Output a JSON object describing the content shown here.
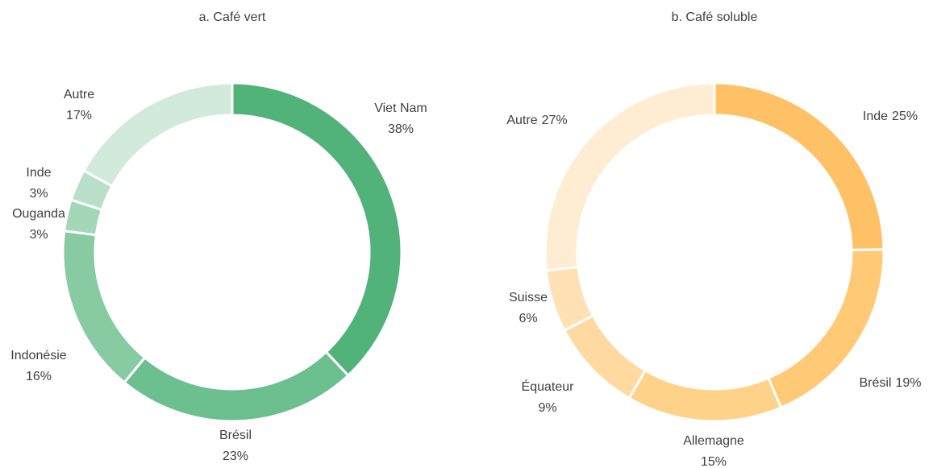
{
  "chart_data": [
    {
      "type": "donut",
      "title": "a. Café vert",
      "categories": [
        "Viet Nam",
        "Brésil",
        "Indonésie",
        "Ouganda",
        "Inde",
        "Autre"
      ],
      "values": [
        38,
        23,
        16,
        3,
        3,
        17
      ],
      "value_labels": [
        "38%",
        "23%",
        "16%",
        "3%",
        "3%",
        "17%"
      ],
      "colors": [
        "#52b37a",
        "#6cbf8e",
        "#88cba3",
        "#a3d7b8",
        "#badfc9",
        "#d2eadb"
      ]
    },
    {
      "type": "donut",
      "title": "b. Café soluble",
      "categories": [
        "Inde",
        "Brésil",
        "Allemagne",
        "Équateur",
        "Suisse",
        "Autre"
      ],
      "values": [
        25,
        19,
        15,
        9,
        6,
        27
      ],
      "value_labels": [
        "25%",
        "19%",
        "15%",
        "9%",
        "6%",
        "27%"
      ],
      "colors": [
        "#ffc166",
        "#ffc976",
        "#ffd28a",
        "#ffd99f",
        "#ffe1b5",
        "#ffedd3"
      ]
    }
  ]
}
